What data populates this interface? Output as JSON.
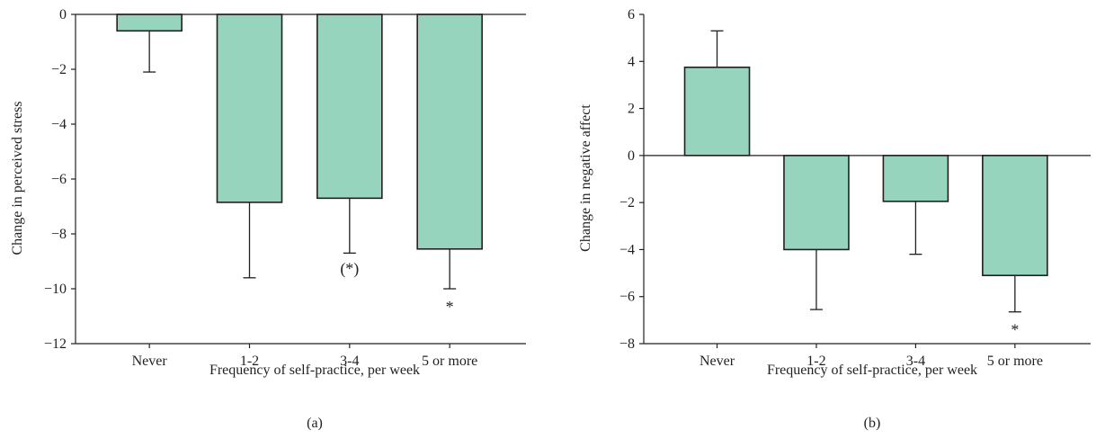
{
  "colors": {
    "bar_fill": "#96d4be",
    "stroke": "#231f20"
  },
  "chart_data": [
    {
      "type": "bar",
      "panel_label": "(a)",
      "categories": [
        "Never",
        "1-2",
        "3-4",
        "5 or more"
      ],
      "values": [
        -0.6,
        -6.85,
        -6.7,
        -8.55
      ],
      "error_low": [
        -2.1,
        -9.6,
        -8.7,
        -10.0
      ],
      "annotations": [
        "",
        "",
        "(*)",
        "*"
      ],
      "xlabel": "Frequency of self-practice, per week",
      "ylabel": "Change in perceived stress",
      "ylim": [
        -12,
        0
      ],
      "yticks": [
        0,
        -2,
        -4,
        -6,
        -8,
        -10,
        -12
      ],
      "ytick_labels": [
        "0",
        "−2",
        "−4",
        "−6",
        "−8",
        "−10",
        "−12"
      ],
      "grid": false,
      "legend": false
    },
    {
      "type": "bar",
      "panel_label": "(b)",
      "categories": [
        "Never",
        "1-2",
        "3-4",
        "5 or more"
      ],
      "values": [
        3.75,
        -4.0,
        -1.95,
        -5.1
      ],
      "error_bounds": [
        5.3,
        -6.55,
        -4.2,
        -6.65
      ],
      "annotations": [
        "",
        "",
        "",
        "*"
      ],
      "xlabel": "Frequency of self-practice, per week",
      "ylabel": "Change in negative affect",
      "ylim": [
        -8,
        6
      ],
      "yticks": [
        6,
        4,
        2,
        0,
        -2,
        -4,
        -6,
        -8
      ],
      "ytick_labels": [
        "6",
        "4",
        "2",
        "0",
        "−2",
        "−4",
        "−6",
        "−8"
      ],
      "grid": false,
      "legend": false
    }
  ]
}
